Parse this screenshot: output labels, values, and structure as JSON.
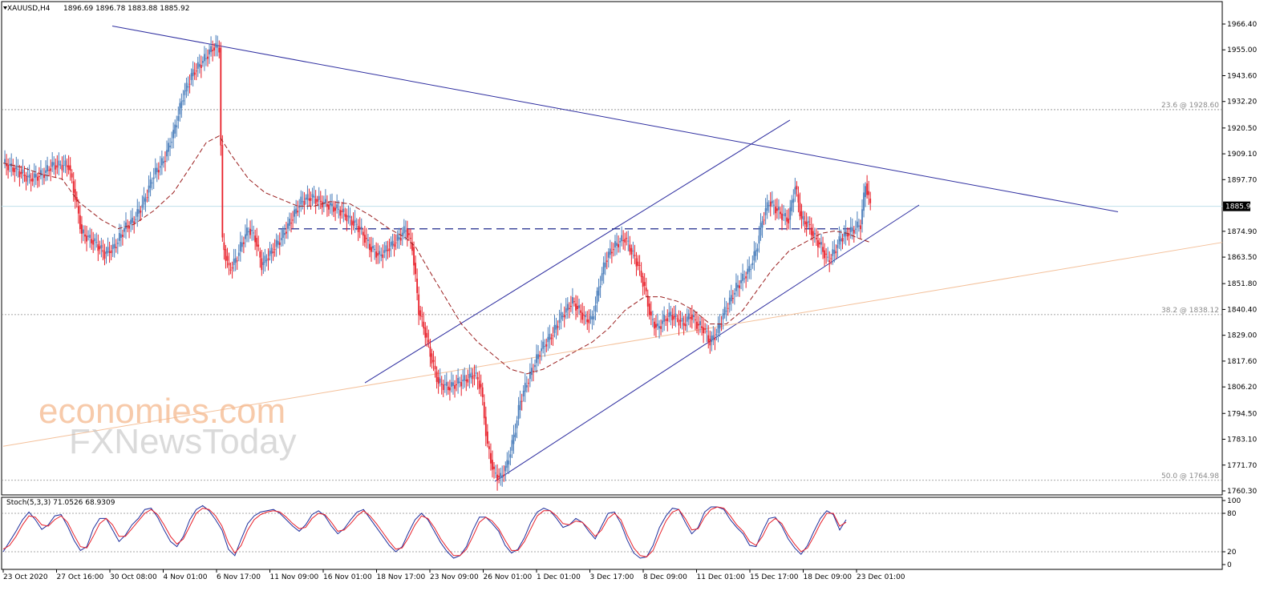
{
  "chart_data": [
    {
      "type": "candlestick",
      "header": {
        "symbol": "XAUUSD,H4",
        "ohlc": "1896.69 1896.78 1883.88 1885.92"
      },
      "ylim": [
        1760.3,
        1966.4
      ],
      "y_ticks": [
        "1966.40",
        "1955.00",
        "1943.60",
        "1932.20",
        "1920.50",
        "1909.10",
        "1897.70",
        "1885.92",
        "1874.90",
        "1863.50",
        "1851.80",
        "1840.40",
        "1829.00",
        "1817.60",
        "1806.20",
        "1794.50",
        "1783.10",
        "1771.70",
        "1760.30"
      ],
      "current_price": 1885.92,
      "colors": {
        "up": "#4a7ebb",
        "down": "#e8202a",
        "trend": "#2e2ea0",
        "ma": "#9b1f1f",
        "fib": "#8a8a8a",
        "support": "#f4c09a",
        "price_line": "#bfe0ea"
      },
      "x_ticks": [
        "23 Oct 2020",
        "27 Oct 16:00",
        "30 Oct 08:00",
        "4 Nov 01:00",
        "6 Nov 17:00",
        "11 Nov 09:00",
        "16 Nov 01:00",
        "18 Nov 17:00",
        "23 Nov 09:00",
        "26 Nov 01:00",
        "1 Dec 01:00",
        "3 Dec 17:00",
        "8 Dec 09:00",
        "11 Dec 01:00",
        "15 Dec 17:00",
        "18 Dec 09:00",
        "23 Dec 01:00"
      ],
      "close_path": [
        [
          0,
          1905
        ],
        [
          8,
          1902
        ],
        [
          16,
          1898
        ],
        [
          24,
          1900
        ],
        [
          30,
          1904
        ],
        [
          40,
          1904
        ],
        [
          44,
          1890
        ],
        [
          48,
          1874
        ],
        [
          56,
          1870
        ],
        [
          62,
          1865
        ],
        [
          68,
          1868
        ],
        [
          74,
          1876
        ],
        [
          80,
          1880
        ],
        [
          86,
          1888
        ],
        [
          92,
          1900
        ],
        [
          98,
          1906
        ],
        [
          104,
          1918
        ],
        [
          110,
          1935
        ],
        [
          116,
          1945
        ],
        [
          122,
          1950
        ],
        [
          128,
          1956
        ],
        [
          132,
          1956
        ],
        [
          134,
          1870
        ],
        [
          138,
          1858
        ],
        [
          142,
          1862
        ],
        [
          146,
          1870
        ],
        [
          150,
          1876
        ],
        [
          154,
          1872
        ],
        [
          158,
          1860
        ],
        [
          164,
          1866
        ],
        [
          170,
          1872
        ],
        [
          176,
          1880
        ],
        [
          182,
          1888
        ],
        [
          188,
          1890
        ],
        [
          194,
          1888
        ],
        [
          200,
          1886
        ],
        [
          206,
          1884
        ],
        [
          212,
          1880
        ],
        [
          218,
          1876
        ],
        [
          224,
          1868
        ],
        [
          230,
          1864
        ],
        [
          236,
          1868
        ],
        [
          242,
          1872
        ],
        [
          246,
          1876
        ],
        [
          250,
          1868
        ],
        [
          254,
          1840
        ],
        [
          258,
          1830
        ],
        [
          262,
          1818
        ],
        [
          266,
          1808
        ],
        [
          272,
          1806
        ],
        [
          278,
          1808
        ],
        [
          284,
          1810
        ],
        [
          288,
          1812
        ],
        [
          292,
          1806
        ],
        [
          296,
          1780
        ],
        [
          300,
          1768
        ],
        [
          304,
          1766
        ],
        [
          308,
          1772
        ],
        [
          312,
          1784
        ],
        [
          316,
          1800
        ],
        [
          320,
          1808
        ],
        [
          324,
          1815
        ],
        [
          328,
          1822
        ],
        [
          332,
          1826
        ],
        [
          336,
          1830
        ],
        [
          340,
          1836
        ],
        [
          344,
          1840
        ],
        [
          348,
          1844
        ],
        [
          352,
          1840
        ],
        [
          356,
          1836
        ],
        [
          360,
          1836
        ],
        [
          364,
          1850
        ],
        [
          368,
          1862
        ],
        [
          372,
          1867
        ],
        [
          376,
          1870
        ],
        [
          380,
          1872
        ],
        [
          384,
          1866
        ],
        [
          388,
          1860
        ],
        [
          392,
          1850
        ],
        [
          396,
          1836
        ],
        [
          400,
          1832
        ],
        [
          404,
          1836
        ],
        [
          408,
          1838
        ],
        [
          412,
          1836
        ],
        [
          416,
          1834
        ],
        [
          420,
          1838
        ],
        [
          424,
          1834
        ],
        [
          428,
          1832
        ],
        [
          432,
          1826
        ],
        [
          436,
          1830
        ],
        [
          440,
          1838
        ],
        [
          444,
          1844
        ],
        [
          448,
          1850
        ],
        [
          452,
          1854
        ],
        [
          456,
          1858
        ],
        [
          460,
          1866
        ],
        [
          464,
          1880
        ],
        [
          468,
          1888
        ],
        [
          472,
          1885
        ],
        [
          476,
          1882
        ],
        [
          480,
          1880
        ],
        [
          484,
          1895
        ],
        [
          488,
          1880
        ],
        [
          492,
          1878
        ],
        [
          496,
          1872
        ],
        [
          500,
          1868
        ],
        [
          504,
          1862
        ],
        [
          508,
          1866
        ],
        [
          512,
          1872
        ],
        [
          516,
          1874
        ],
        [
          520,
          1876
        ],
        [
          524,
          1878
        ],
        [
          527,
          1896
        ],
        [
          530,
          1886
        ]
      ],
      "ma_path": [
        [
          0,
          1905
        ],
        [
          12,
          1903
        ],
        [
          24,
          1900
        ],
        [
          36,
          1898
        ],
        [
          46,
          1888
        ],
        [
          60,
          1880
        ],
        [
          70,
          1876
        ],
        [
          80,
          1878
        ],
        [
          92,
          1884
        ],
        [
          104,
          1892
        ],
        [
          116,
          1905
        ],
        [
          124,
          1914
        ],
        [
          132,
          1917
        ],
        [
          140,
          1908
        ],
        [
          150,
          1898
        ],
        [
          160,
          1892
        ],
        [
          170,
          1889
        ],
        [
          180,
          1886
        ],
        [
          190,
          1886
        ],
        [
          200,
          1888
        ],
        [
          212,
          1887
        ],
        [
          224,
          1882
        ],
        [
          236,
          1876
        ],
        [
          246,
          1872
        ],
        [
          252,
          1868
        ],
        [
          260,
          1858
        ],
        [
          270,
          1846
        ],
        [
          280,
          1834
        ],
        [
          290,
          1826
        ],
        [
          300,
          1820
        ],
        [
          310,
          1814
        ],
        [
          320,
          1812
        ],
        [
          330,
          1814
        ],
        [
          340,
          1818
        ],
        [
          350,
          1822
        ],
        [
          360,
          1826
        ],
        [
          370,
          1832
        ],
        [
          380,
          1840
        ],
        [
          392,
          1846
        ],
        [
          402,
          1846
        ],
        [
          412,
          1844
        ],
        [
          422,
          1840
        ],
        [
          432,
          1834
        ],
        [
          442,
          1834
        ],
        [
          452,
          1840
        ],
        [
          460,
          1848
        ],
        [
          470,
          1858
        ],
        [
          480,
          1866
        ],
        [
          490,
          1870
        ],
        [
          500,
          1874
        ],
        [
          508,
          1875
        ],
        [
          516,
          1874
        ],
        [
          522,
          1872
        ],
        [
          530,
          1870
        ]
      ],
      "fibonacci": [
        {
          "label": "23.6 @ 1928.60",
          "value": 1928.6
        },
        {
          "label": "38.2 @ 1838.12",
          "value": 1838.12
        },
        {
          "label": "50.0 @ 1764.98",
          "value": 1764.98
        }
      ],
      "horizontal_level": 1876
    },
    {
      "type": "line",
      "header": "Stoch(5,3,3) 71.0526 68.9309",
      "ylim": [
        0,
        100
      ],
      "y_ticks": [
        "100",
        "80",
        "20",
        "0"
      ],
      "levels": [
        80,
        20
      ],
      "series": [
        {
          "color": "#1f2f9c",
          "values": [
            20,
            36,
            52,
            70,
            82,
            70,
            55,
            62,
            76,
            78,
            60,
            38,
            22,
            28,
            56,
            72,
            72,
            54,
            36,
            46,
            62,
            72,
            86,
            88,
            74,
            54,
            36,
            28,
            44,
            70,
            86,
            92,
            84,
            70,
            54,
            24,
            14,
            40,
            64,
            76,
            82,
            84,
            86,
            80,
            70,
            60,
            52,
            62,
            78,
            84,
            76,
            60,
            48,
            56,
            70,
            82,
            86,
            72,
            58,
            44,
            30,
            20,
            28,
            50,
            70,
            80,
            70,
            52,
            34,
            20,
            10,
            14,
            28,
            54,
            74,
            74,
            64,
            52,
            30,
            18,
            24,
            42,
            66,
            82,
            88,
            84,
            72,
            58,
            62,
            72,
            66,
            52,
            40,
            60,
            80,
            82,
            64,
            38,
            18,
            10,
            12,
            30,
            58,
            76,
            88,
            86,
            66,
            48,
            58,
            82,
            90,
            90,
            86,
            70,
            58,
            48,
            30,
            28,
            52,
            72,
            74,
            60,
            40,
            26,
            16,
            30,
            52,
            72,
            84,
            78,
            54,
            70
          ]
        },
        {
          "color": "#e8202a",
          "values": [
            24,
            30,
            44,
            62,
            76,
            74,
            62,
            60,
            70,
            76,
            66,
            46,
            28,
            26,
            44,
            64,
            72,
            62,
            44,
            44,
            56,
            68,
            80,
            86,
            78,
            62,
            44,
            32,
            40,
            60,
            80,
            88,
            86,
            76,
            60,
            34,
            18,
            30,
            54,
            70,
            78,
            82,
            84,
            82,
            74,
            64,
            56,
            58,
            72,
            80,
            78,
            66,
            52,
            54,
            64,
            76,
            84,
            76,
            64,
            50,
            36,
            24,
            26,
            42,
            62,
            76,
            72,
            58,
            40,
            26,
            14,
            14,
            24,
            44,
            66,
            74,
            68,
            56,
            38,
            22,
            22,
            36,
            56,
            76,
            84,
            84,
            76,
            64,
            62,
            68,
            66,
            56,
            44,
            54,
            72,
            80,
            70,
            46,
            26,
            14,
            12,
            22,
            46,
            68,
            82,
            86,
            72,
            54,
            56,
            74,
            86,
            90,
            88,
            76,
            62,
            52,
            36,
            30,
            44,
            64,
            72,
            64,
            46,
            32,
            20,
            26,
            44,
            64,
            80,
            80,
            60,
            66
          ]
        }
      ]
    }
  ],
  "watermark": {
    "line1": "economies.com",
    "line2": "FXNewsToday"
  }
}
